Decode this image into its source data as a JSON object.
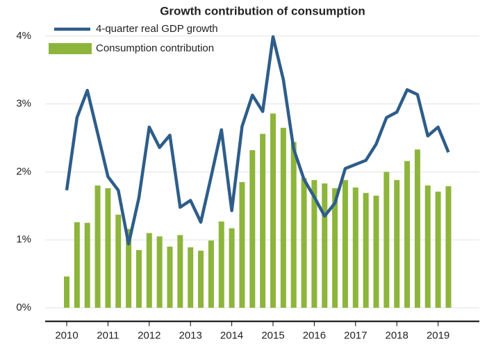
{
  "chart_data": {
    "type": "bar_line",
    "title": "Growth contribution of consumption",
    "categories": [
      "2010",
      null,
      null,
      null,
      "2011",
      null,
      null,
      null,
      "2012",
      null,
      null,
      null,
      "2013",
      null,
      null,
      null,
      "2014",
      null,
      null,
      null,
      "2015",
      null,
      null,
      null,
      "2016",
      null,
      null,
      null,
      "2017",
      null,
      null,
      null,
      "2018",
      null,
      null,
      null,
      "2019",
      null
    ],
    "series": [
      {
        "name": "4-quarter real GDP growth",
        "type": "line",
        "color": "#2e5d89",
        "values": [
          1.73,
          2.8,
          3.2,
          2.57,
          1.93,
          1.73,
          0.94,
          1.62,
          2.66,
          2.36,
          2.54,
          1.48,
          1.58,
          1.26,
          1.93,
          2.62,
          1.43,
          2.67,
          3.13,
          2.89,
          3.99,
          3.36,
          2.34,
          1.89,
          1.63,
          1.35,
          1.54,
          2.05,
          2.11,
          2.17,
          2.41,
          2.8,
          2.88,
          3.21,
          3.14,
          2.53,
          2.66,
          2.29
        ]
      },
      {
        "name": "Consumption contribution",
        "type": "bar",
        "color": "#8db53c",
        "values": [
          0.46,
          1.26,
          1.25,
          1.8,
          1.76,
          1.37,
          1.16,
          0.85,
          1.1,
          1.05,
          0.9,
          1.07,
          0.89,
          0.84,
          0.99,
          1.27,
          1.17,
          1.85,
          2.32,
          2.56,
          2.86,
          2.65,
          2.44,
          1.91,
          1.88,
          1.83,
          1.76,
          1.88,
          1.77,
          1.69,
          1.65,
          2.0,
          1.88,
          2.16,
          2.33,
          1.8,
          1.71,
          1.79
        ]
      }
    ],
    "ylim": [
      -0.2,
      4.3
    ],
    "yticks": [
      {
        "value": 0,
        "label": "0%"
      },
      {
        "value": 1,
        "label": "1%"
      },
      {
        "value": 2,
        "label": "2%"
      },
      {
        "value": 3,
        "label": "3%"
      },
      {
        "value": 4,
        "label": "4%"
      }
    ],
    "grid": true
  }
}
